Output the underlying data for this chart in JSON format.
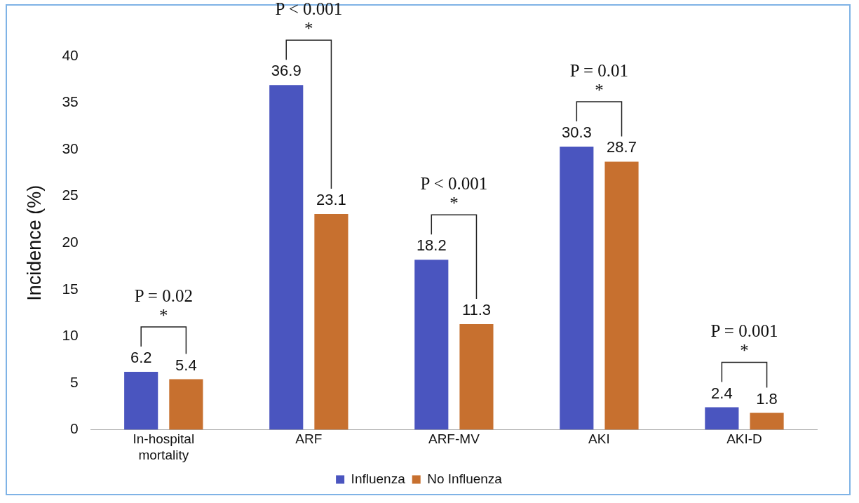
{
  "chart_data": {
    "type": "bar",
    "ylabel": "Incidence (%)",
    "categories": [
      "In-hospital mortality",
      "ARF",
      "ARF-MV",
      "AKI",
      "AKI-D"
    ],
    "series": [
      {
        "name": "Influenza",
        "color": "#4a55bf",
        "values": [
          6.2,
          36.9,
          18.2,
          30.3,
          2.4
        ]
      },
      {
        "name": "No Influenza",
        "color": "#c7702f",
        "values": [
          5.4,
          23.1,
          11.3,
          28.7,
          1.8
        ]
      }
    ],
    "ylim": [
      0,
      40
    ],
    "yticks": [
      0,
      5,
      10,
      15,
      20,
      25,
      30,
      35,
      40
    ],
    "grid": false,
    "legend": "bottom",
    "data_labels": true,
    "annotations": [
      "P = 0.02\n*",
      "P < 0.001\n*",
      "P < 0.001\n*",
      "P = 0.01\n*",
      "P = 0.001\n*"
    ]
  }
}
